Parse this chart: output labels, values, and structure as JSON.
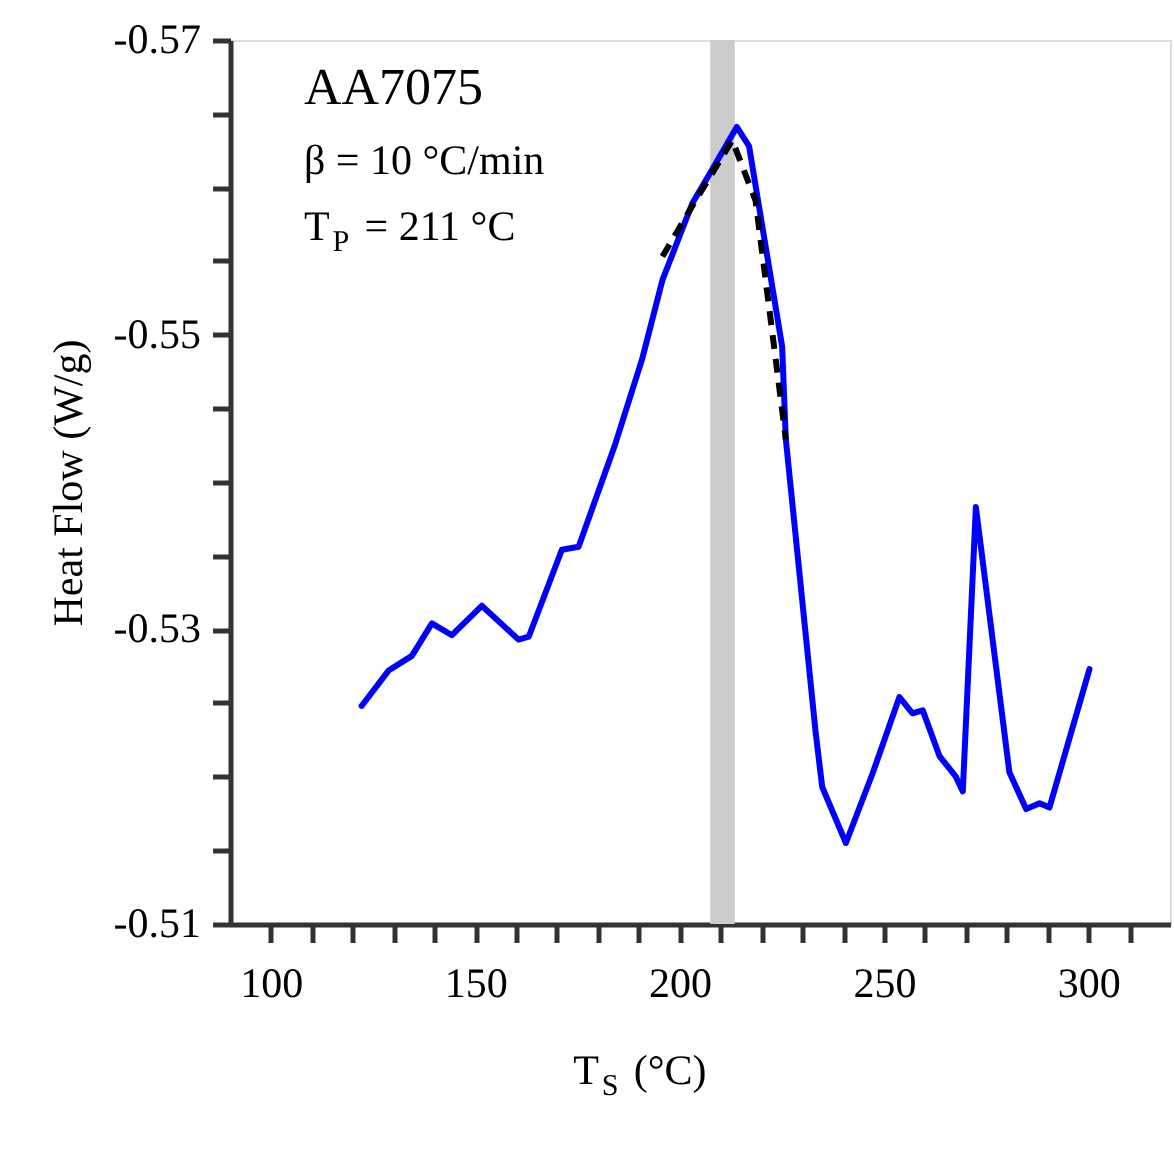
{
  "chart_data": {
    "type": "line",
    "xlabel": "T$_{S}$ (°C)",
    "ylabel": "Heat Flow (W/g)",
    "annotations": [
      "AA7075",
      "β = 10 °C/min",
      "T$_{P}$ = 211 °C"
    ],
    "xlim": [
      90,
      320
    ],
    "xticks": [
      100,
      {
        "value": 110,
        "label": null
      },
      {
        "value": 120,
        "label": null
      },
      {
        "value": 130,
        "label": null
      },
      {
        "value": 140,
        "label": null
      },
      150,
      {
        "value": 160,
        "label": null
      },
      {
        "value": 170,
        "label": null
      },
      {
        "value": 180,
        "label": null
      },
      {
        "value": 190,
        "label": null
      },
      200,
      {
        "value": 210,
        "label": null
      },
      {
        "value": 220,
        "label": null
      },
      {
        "value": 230,
        "label": null
      },
      {
        "value": 240,
        "label": null
      },
      250,
      {
        "value": 260,
        "label": null
      },
      {
        "value": 270,
        "label": null
      },
      {
        "value": 280,
        "label": null
      },
      {
        "value": 290,
        "label": null
      },
      300,
      {
        "value": 310,
        "label": null
      }
    ],
    "ylim": [
      -0.51,
      -0.57
    ],
    "yticks": [
      -0.57,
      {
        "value": -0.565,
        "label": null
      },
      {
        "value": -0.56,
        "label": null
      },
      {
        "value": -0.555,
        "label": null
      },
      -0.55,
      {
        "value": -0.545,
        "label": null
      },
      {
        "value": -0.54,
        "label": null
      },
      {
        "value": -0.535,
        "label": null
      },
      -0.53,
      {
        "value": -0.525,
        "label": null
      },
      {
        "value": -0.52,
        "label": null
      },
      {
        "value": -0.515,
        "label": null
      },
      -0.51
    ],
    "grid": false,
    "bands": [
      {
        "axis": "x",
        "from": 207.5,
        "to": 213.5,
        "color": "#cccccc"
      }
    ],
    "series": [
      {
        "color": "#0000ff",
        "line_style": "solid",
        "x": [
          122.2,
          128.8,
          134.5,
          139.4,
          144.3,
          151.6,
          160.6,
          163.1,
          171.2,
          175.3,
          184.3,
          190.8,
          195.8,
          203.1,
          208.8,
          214.0,
          217.0,
          225.1,
          226.0,
          233.3,
          234.9,
          240.7,
          247.2,
          253.8,
          257.0,
          259.5,
          263.6,
          267.6,
          269.3,
          272.5,
          280.7,
          284.8,
          288.1,
          290.5,
          300.3
        ],
        "values": [
          -0.5248,
          -0.5272,
          -0.5282,
          -0.5304,
          -0.5296,
          -0.5316,
          -0.5293,
          -0.5295,
          -0.5354,
          -0.5356,
          -0.5426,
          -0.5483,
          -0.5537,
          -0.5589,
          -0.5616,
          -0.5641,
          -0.5628,
          -0.5492,
          -0.5429,
          -0.523,
          -0.5193,
          -0.5155,
          -0.5202,
          -0.5254,
          -0.5243,
          -0.5245,
          -0.5214,
          -0.52,
          -0.519,
          -0.5383,
          -0.5203,
          -0.5178,
          -0.5182,
          -0.5179,
          -0.5273
        ]
      },
      {
        "color": "#000000",
        "type": "line",
        "line_style": "dashed",
        "x": [
          195.8,
          203.9,
          212.9,
          218.6,
          226.0
        ],
        "values": [
          -0.5553,
          -0.5591,
          -0.5632,
          -0.5591,
          -0.5429
        ]
      }
    ]
  }
}
